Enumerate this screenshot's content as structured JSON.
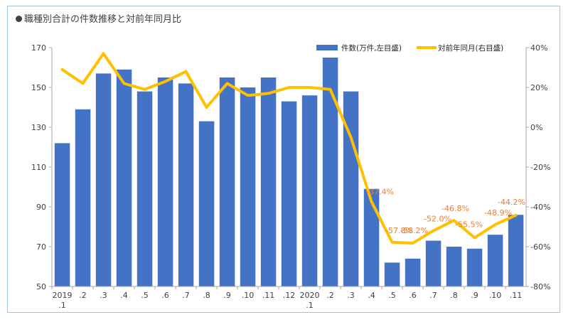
{
  "title": "職種別合計の件数推移と対前年同月比",
  "colors": {
    "bar": "#4472c4",
    "line": "#ffc000",
    "annotation": "#ed7d31",
    "axis": "#404040"
  },
  "chart_data": {
    "type": "bar+line",
    "title": "職種別合計の件数推移と対前年同月比",
    "categories": [
      "2019.1",
      ".2",
      ".3",
      ".4",
      ".5",
      ".6",
      ".7",
      ".8",
      ".9",
      ".10",
      ".11",
      ".12",
      "2020.1",
      ".2",
      ".3",
      ".4",
      ".5",
      ".6",
      ".7",
      ".8",
      ".9",
      ".10",
      ".11"
    ],
    "x_tick_labels": [
      {
        "line1": "2019",
        "line2": ".1"
      },
      {
        "line1": ".2",
        "line2": ""
      },
      {
        "line1": ".3",
        "line2": ""
      },
      {
        "line1": ".4",
        "line2": ""
      },
      {
        "line1": ".5",
        "line2": ""
      },
      {
        "line1": ".6",
        "line2": ""
      },
      {
        "line1": ".7",
        "line2": ""
      },
      {
        "line1": ".8",
        "line2": ""
      },
      {
        "line1": ".9",
        "line2": ""
      },
      {
        "line1": ".10",
        "line2": ""
      },
      {
        "line1": ".11",
        "line2": ""
      },
      {
        "line1": ".12",
        "line2": ""
      },
      {
        "line1": "2020",
        "line2": ".1"
      },
      {
        "line1": ".2",
        "line2": ""
      },
      {
        "line1": ".3",
        "line2": ""
      },
      {
        "line1": ".4",
        "line2": ""
      },
      {
        "line1": ".5",
        "line2": ""
      },
      {
        "line1": ".6",
        "line2": ""
      },
      {
        "line1": ".7",
        "line2": ""
      },
      {
        "line1": ".8",
        "line2": ""
      },
      {
        "line1": ".9",
        "line2": ""
      },
      {
        "line1": ".10",
        "line2": ""
      },
      {
        "line1": ".11",
        "line2": ""
      }
    ],
    "series": [
      {
        "name": "件数(万件,左目盛)",
        "kind": "bar",
        "axis": "left",
        "values": [
          122,
          139,
          157,
          159,
          148,
          155,
          152,
          133,
          155,
          150,
          155,
          143,
          146,
          165,
          148,
          99,
          62,
          64,
          73,
          70,
          69,
          76,
          86
        ]
      },
      {
        "name": "対前年同月(右目盛)",
        "kind": "line",
        "axis": "right",
        "values": [
          29,
          22,
          37,
          22,
          19,
          23,
          28,
          10,
          22,
          16,
          17,
          20,
          20,
          19,
          -5,
          -37.4,
          -57.8,
          -58.2,
          -52.0,
          -46.8,
          -55.5,
          -48.9,
          -44.2
        ]
      }
    ],
    "annotations": [
      {
        "index": 15,
        "text": "-37.4%"
      },
      {
        "index": 16,
        "text": "-57.8%"
      },
      {
        "index": 17,
        "text": "-58.2%"
      },
      {
        "index": 18,
        "text": "-52.0%"
      },
      {
        "index": 19,
        "text": "-46.8%"
      },
      {
        "index": 20,
        "text": "-55.5%"
      },
      {
        "index": 21,
        "text": "-48.9%"
      },
      {
        "index": 22,
        "text": "-44.2%"
      }
    ],
    "left_axis": {
      "ylim": [
        50,
        170
      ],
      "ticks": [
        "50",
        "70",
        "90",
        "110",
        "130",
        "150",
        "170"
      ]
    },
    "right_axis": {
      "ylim": [
        -80,
        40
      ],
      "ticks": [
        "-80%",
        "-60%",
        "-40%",
        "-20%",
        "0%",
        "20%",
        "40%"
      ]
    },
    "grid": false,
    "legend": "top-right"
  }
}
